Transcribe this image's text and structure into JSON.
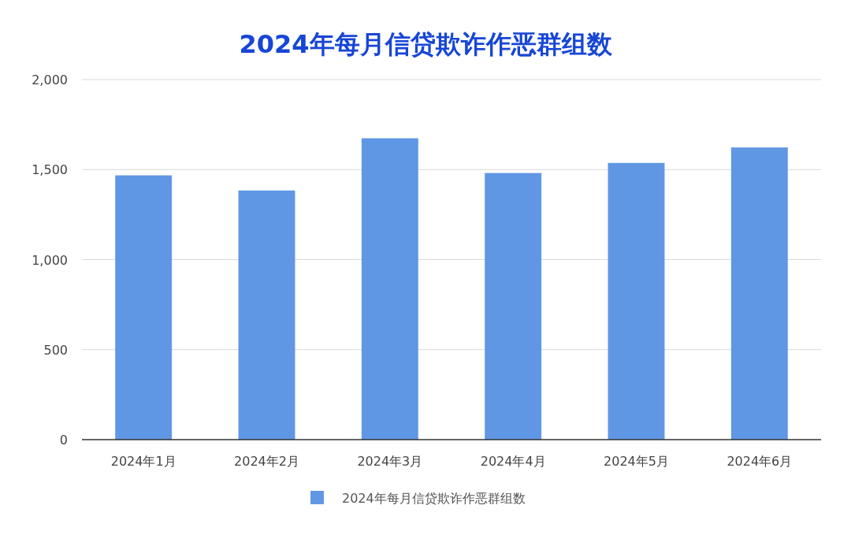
{
  "chart_data": {
    "type": "bar",
    "title": "2024年每月信贷欺诈作恶群组数",
    "categories": [
      "2024年1月",
      "2024年2月",
      "2024年3月",
      "2024年4月",
      "2024年5月",
      "2024年6月"
    ],
    "series": [
      {
        "name": "2024年每月信贷欺诈作恶群组数",
        "color": "#6097e4",
        "values": [
          1468,
          1384,
          1674,
          1481,
          1537,
          1623
        ]
      }
    ],
    "ylim": [
      0,
      2000
    ],
    "yticks": [
      {
        "value": 0,
        "label": "0"
      },
      {
        "value": 500,
        "label": "500"
      },
      {
        "value": 1000,
        "label": "1,000"
      },
      {
        "value": 1500,
        "label": "1,500"
      },
      {
        "value": 2000,
        "label": "2,000"
      }
    ],
    "grid": "y",
    "legend": "bottom"
  }
}
